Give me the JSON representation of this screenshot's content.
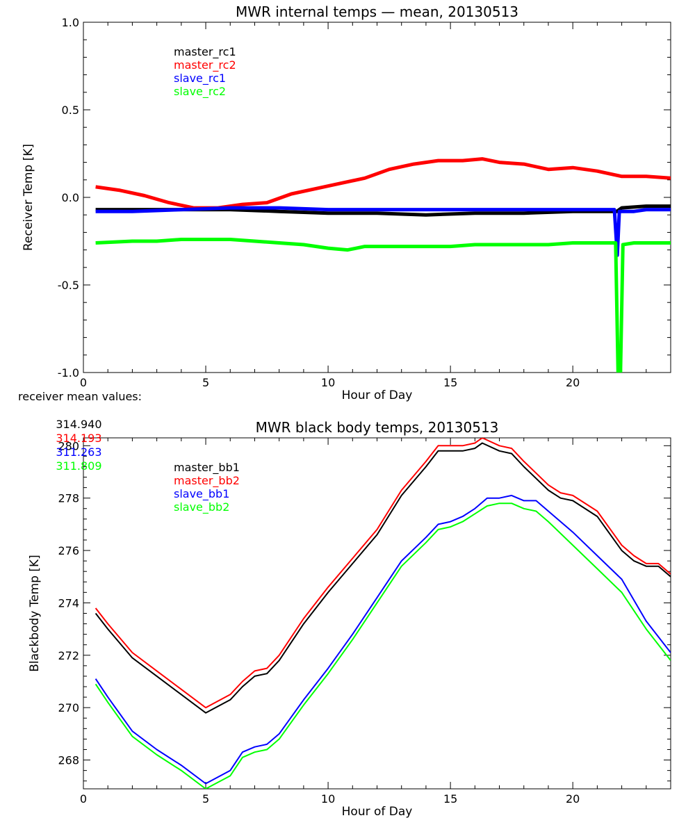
{
  "chart_data": [
    {
      "type": "line",
      "title": "MWR internal temps — mean, 20130513",
      "xlabel": "Hour of Day",
      "ylabel": "Receiver Temp [K]",
      "xlim": [
        0,
        24
      ],
      "ylim": [
        -1.0,
        1.0
      ],
      "xticks": [
        "0",
        "5",
        "10",
        "15",
        "20"
      ],
      "yticks": [
        "-1.0",
        "-0.5",
        "0.0",
        "0.5",
        "1.0"
      ],
      "grid": false,
      "legend_position": "top-left (inside)",
      "series": [
        {
          "name": "master_rc1",
          "color": "#000000",
          "x": [
            0.5,
            2,
            4,
            6,
            8,
            10,
            12,
            14,
            16,
            18,
            20,
            21.8,
            22,
            23,
            24
          ],
          "y": [
            -0.07,
            -0.07,
            -0.07,
            -0.07,
            -0.08,
            -0.09,
            -0.09,
            -0.1,
            -0.09,
            -0.09,
            -0.08,
            -0.08,
            -0.06,
            -0.05,
            -0.05
          ]
        },
        {
          "name": "master_rc2",
          "color": "#ff0000",
          "x": [
            0.5,
            1.5,
            2.5,
            3.5,
            4.5,
            5.5,
            6.5,
            7.5,
            8.5,
            9.5,
            10.5,
            11.5,
            12.5,
            13.5,
            14.5,
            15.5,
            16.3,
            17,
            18,
            19,
            20,
            21,
            22,
            23,
            24
          ],
          "y": [
            0.06,
            0.04,
            0.01,
            -0.03,
            -0.06,
            -0.06,
            -0.04,
            -0.03,
            0.02,
            0.05,
            0.08,
            0.11,
            0.16,
            0.19,
            0.21,
            0.21,
            0.22,
            0.2,
            0.19,
            0.16,
            0.17,
            0.15,
            0.12,
            0.12,
            0.11
          ]
        },
        {
          "name": "slave_rc1",
          "color": "#0000ff",
          "x": [
            0.5,
            2,
            4,
            6,
            8,
            10,
            12,
            14,
            16,
            18,
            20,
            21.7,
            21.82,
            21.9,
            22.05,
            22.5,
            23,
            24
          ],
          "y": [
            -0.08,
            -0.08,
            -0.07,
            -0.06,
            -0.06,
            -0.07,
            -0.07,
            -0.07,
            -0.07,
            -0.07,
            -0.07,
            -0.07,
            -0.33,
            -0.08,
            -0.08,
            -0.08,
            -0.07,
            -0.07
          ]
        },
        {
          "name": "slave_rc2",
          "color": "#00ff00",
          "x": [
            0.5,
            2,
            3,
            4,
            5,
            6,
            7,
            8,
            9,
            10,
            10.8,
            11.5,
            12,
            13,
            14,
            15,
            16,
            17,
            18,
            19,
            20,
            21,
            21.75,
            21.85,
            21.95,
            22.05,
            22.5,
            23,
            24
          ],
          "y": [
            -0.26,
            -0.25,
            -0.25,
            -0.24,
            -0.24,
            -0.24,
            -0.25,
            -0.26,
            -0.27,
            -0.29,
            -0.3,
            -0.28,
            -0.28,
            -0.28,
            -0.28,
            -0.28,
            -0.27,
            -0.27,
            -0.27,
            -0.27,
            -0.26,
            -0.26,
            -0.26,
            -1.0,
            -1.0,
            -0.27,
            -0.26,
            -0.26,
            -0.26
          ]
        }
      ]
    },
    {
      "type": "line",
      "title": "MWR black body temps, 20130513",
      "xlabel": "Hour of Day",
      "ylabel": "Blackbody Temp [K]",
      "xlim": [
        0,
        24
      ],
      "ylim": [
        266.9,
        280.3
      ],
      "xticks": [
        "0",
        "5",
        "10",
        "15",
        "20"
      ],
      "yticks": [
        "268",
        "270",
        "272",
        "274",
        "276",
        "278",
        "280"
      ],
      "grid": false,
      "legend_position": "top-left (inside)",
      "series": [
        {
          "name": "master_bb1",
          "color": "#000000",
          "x": [
            0.5,
            1,
            2,
            3,
            4,
            5,
            6,
            6.5,
            7,
            7.5,
            8,
            9,
            10,
            11,
            12,
            13,
            14,
            14.5,
            15,
            15.5,
            16,
            16.3,
            17,
            17.5,
            18,
            19,
            19.5,
            20,
            21,
            22,
            22.5,
            23,
            23.5,
            24
          ],
          "y": [
            273.6,
            273.0,
            271.9,
            271.2,
            270.5,
            269.8,
            270.3,
            270.8,
            271.2,
            271.3,
            271.8,
            273.2,
            274.4,
            275.5,
            276.6,
            278.1,
            279.2,
            279.8,
            279.8,
            279.8,
            279.9,
            280.1,
            279.8,
            279.7,
            279.2,
            278.3,
            278.0,
            277.9,
            277.3,
            276.0,
            275.6,
            275.4,
            275.4,
            275.0
          ]
        },
        {
          "name": "master_bb2",
          "color": "#ff0000",
          "x": [
            0.5,
            1,
            2,
            3,
            4,
            5,
            6,
            6.5,
            7,
            7.5,
            8,
            9,
            10,
            11,
            12,
            13,
            14,
            14.5,
            15,
            15.5,
            16,
            16.3,
            17,
            17.5,
            18,
            19,
            19.5,
            20,
            21,
            22,
            22.5,
            23,
            23.5,
            24
          ],
          "y": [
            273.8,
            273.2,
            272.1,
            271.4,
            270.7,
            270.0,
            270.5,
            271.0,
            271.4,
            271.5,
            272.0,
            273.4,
            274.6,
            275.7,
            276.8,
            278.3,
            279.4,
            280.0,
            280.0,
            280.0,
            280.1,
            280.3,
            280.0,
            279.9,
            279.4,
            278.5,
            278.2,
            278.1,
            277.5,
            276.2,
            275.8,
            275.5,
            275.5,
            275.1
          ]
        },
        {
          "name": "slave_bb1",
          "color": "#0000ff",
          "x": [
            0.5,
            1,
            2,
            3,
            4,
            5,
            6,
            6.5,
            7,
            7.5,
            8,
            9,
            10,
            11,
            12,
            13,
            14,
            14.5,
            15,
            15.5,
            16,
            16.5,
            17,
            17.5,
            18,
            18.5,
            19,
            20,
            21,
            22,
            23,
            24
          ],
          "y": [
            271.1,
            270.4,
            269.1,
            268.4,
            267.8,
            267.1,
            267.6,
            268.3,
            268.5,
            268.6,
            269.0,
            270.3,
            271.5,
            272.8,
            274.2,
            275.6,
            276.5,
            277.0,
            277.1,
            277.3,
            277.6,
            278.0,
            278.0,
            278.1,
            277.9,
            277.9,
            277.5,
            276.7,
            275.8,
            274.9,
            273.3,
            272.1
          ]
        },
        {
          "name": "slave_bb2",
          "color": "#00ff00",
          "x": [
            0.5,
            1,
            2,
            3,
            4,
            5,
            6,
            6.5,
            7,
            7.5,
            8,
            9,
            10,
            11,
            12,
            13,
            14,
            14.5,
            15,
            15.5,
            16,
            16.5,
            17,
            17.5,
            18,
            18.5,
            19,
            20,
            21,
            22,
            23,
            24
          ],
          "y": [
            270.9,
            270.2,
            268.9,
            268.2,
            267.6,
            266.9,
            267.4,
            268.1,
            268.3,
            268.4,
            268.8,
            270.1,
            271.3,
            272.6,
            274.0,
            275.4,
            276.3,
            276.8,
            276.9,
            277.1,
            277.4,
            277.7,
            277.8,
            277.8,
            277.6,
            277.5,
            277.1,
            276.2,
            275.3,
            274.4,
            273.0,
            271.8
          ]
        }
      ]
    }
  ],
  "receiver_means": {
    "label": "receiver mean values:",
    "values": [
      {
        "text": "314.940",
        "color": "#000000"
      },
      {
        "text": "314.193",
        "color": "#ff0000"
      },
      {
        "text": "311.263",
        "color": "#0000ff"
      },
      {
        "text": "311.809",
        "color": "#00ff00"
      }
    ]
  }
}
